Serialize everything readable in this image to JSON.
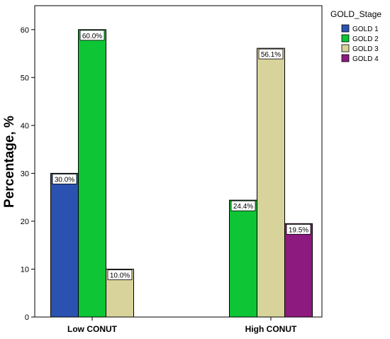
{
  "chart_data": {
    "type": "bar",
    "categories": [
      "Low CONUT",
      "High CONUT"
    ],
    "series": [
      {
        "name": "GOLD 1",
        "color": "#2b52b0",
        "values": [
          30.0,
          null
        ],
        "labels": [
          "30.0%",
          null
        ]
      },
      {
        "name": "GOLD 2",
        "color": "#0dc535",
        "values": [
          60.0,
          24.4
        ],
        "labels": [
          "60.0%",
          "24.4%"
        ]
      },
      {
        "name": "GOLD 3",
        "color": "#d8d39a",
        "values": [
          10.0,
          56.1
        ],
        "labels": [
          "10.0%",
          "56.1%"
        ]
      },
      {
        "name": "GOLD 4",
        "color": "#8d1a7f",
        "values": [
          null,
          19.5
        ],
        "labels": [
          null,
          "19.5%"
        ]
      }
    ],
    "title": "",
    "xlabel": "",
    "ylabel": "Percentage, %",
    "ylim": [
      0,
      65
    ],
    "yticks": [
      0,
      10,
      20,
      30,
      40,
      50,
      60
    ],
    "grid": false,
    "legend": {
      "title": "GOLD_Stage",
      "position": "top-right"
    }
  }
}
